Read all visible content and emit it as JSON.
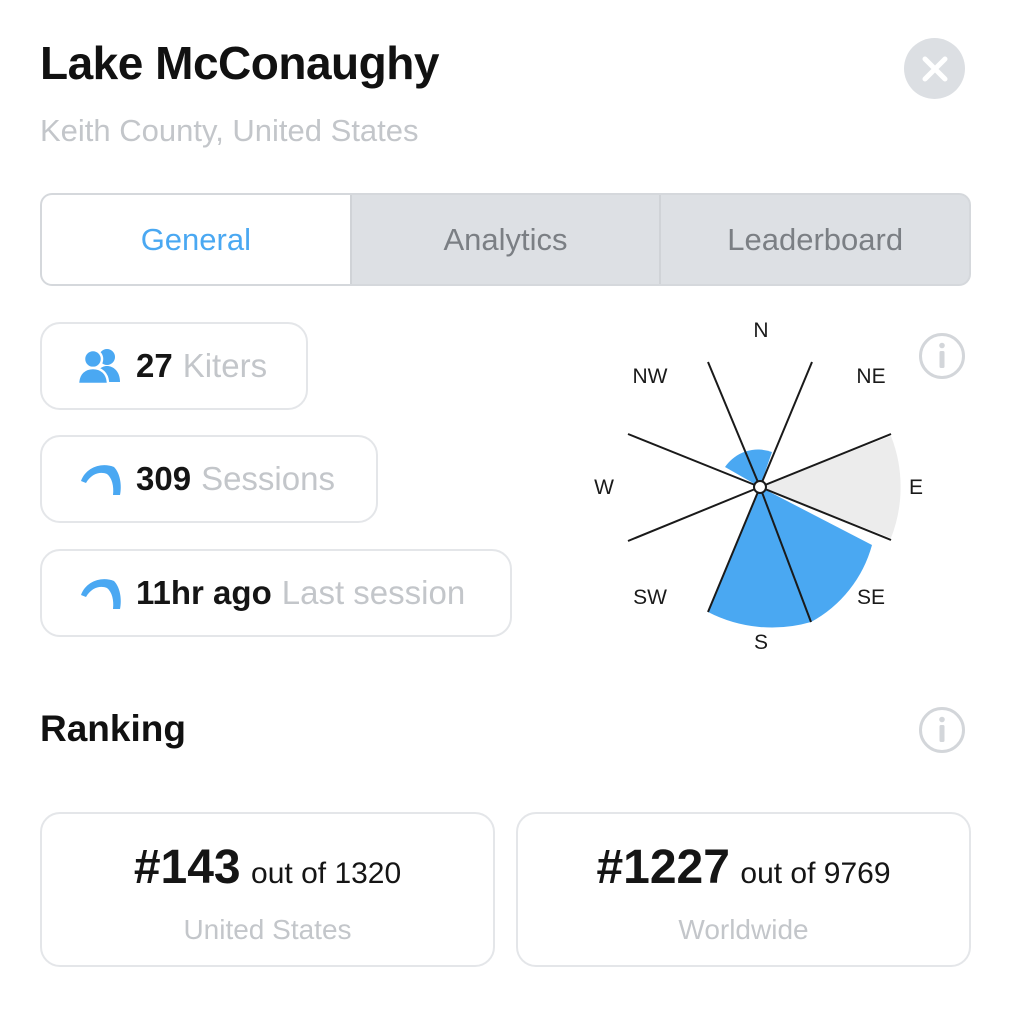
{
  "header": {
    "title": "Lake McConaughy",
    "subtitle": "Keith County, United States",
    "close_icon": "close-icon"
  },
  "tabs": [
    {
      "label": "General",
      "active": true
    },
    {
      "label": "Analytics",
      "active": false
    },
    {
      "label": "Leaderboard",
      "active": false
    }
  ],
  "stats": {
    "kiters": {
      "value": "27",
      "label": "Kiters",
      "icon": "people-icon"
    },
    "sessions": {
      "value": "309",
      "label": "Sessions",
      "icon": "kite-icon"
    },
    "last_session": {
      "value": "11hr ago",
      "label": "Last session",
      "icon": "kite-icon"
    }
  },
  "wind_rose": {
    "directions": [
      "N",
      "NE",
      "E",
      "SE",
      "S",
      "SW",
      "W",
      "NW"
    ],
    "accent_color": "#4aa8f2",
    "shaded_color": "#ececec",
    "info_icon": "info-icon"
  },
  "ranking": {
    "title": "Ranking",
    "info_icon": "info-icon",
    "cards": [
      {
        "rank": "#143",
        "out_of": "out of 1320",
        "scope": "United States"
      },
      {
        "rank": "#1227",
        "out_of": "out of 9769",
        "scope": "Worldwide"
      }
    ]
  },
  "colors": {
    "accent": "#4aa8f2",
    "muted_text": "#c3c6ca",
    "tab_inactive_bg": "#dde0e4"
  }
}
